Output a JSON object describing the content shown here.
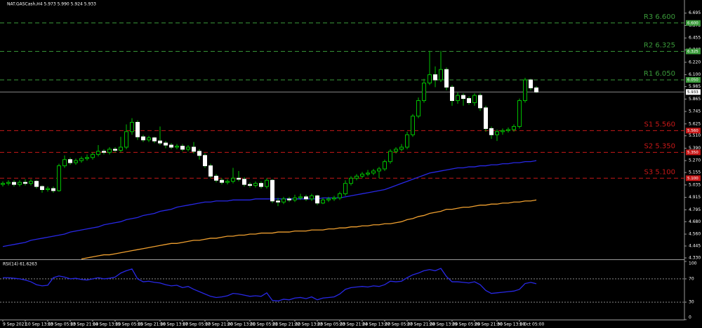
{
  "chart_data": [
    {
      "type": "candlestick",
      "title": "NAT.GASCash,H4 5.973 5.990 5.924 5.933",
      "categories": [
        "9 Sep 2021",
        null,
        null,
        null,
        "10 Sep 13:00",
        null,
        null,
        null,
        "13 Sep 05:00",
        null,
        null,
        null,
        "13 Sep 21:00",
        null,
        null,
        null,
        "14 Sep 13:00",
        null,
        null,
        null,
        "15 Sep 05:00",
        null,
        null,
        null,
        "15 Sep 21:00",
        null,
        null,
        null,
        "16 Sep 13:00",
        null,
        null,
        null,
        "17 Sep 05:00",
        null,
        null,
        null,
        "17 Sep 21:00",
        null,
        null,
        null,
        "20 Sep 13:00",
        null,
        null,
        null,
        "21 Sep 05:00",
        null,
        null,
        null,
        "21 Sep 21:00",
        null,
        null,
        null,
        "22 Sep 13:00",
        null,
        null,
        null,
        "23 Sep 05:00",
        null,
        null,
        null,
        "23 Sep 21:00",
        null,
        null,
        null,
        "24 Sep 13:00",
        null,
        null,
        null,
        "27 Sep 05:00",
        null,
        null,
        null,
        "27 Sep 21:00",
        null,
        null,
        null,
        "28 Sep 13:00",
        null,
        null,
        null,
        "29 Sep 05:00",
        null,
        null,
        null,
        "29 Sep 21:00",
        null,
        null,
        null,
        "30 Sep 13:00",
        null,
        null,
        null,
        "1 Oct 05:00",
        null,
        null,
        null
      ],
      "open": [
        5.04,
        5.05,
        5.06,
        5.04,
        5.06,
        5.05,
        5.07,
        5.02,
        4.99,
        5.0,
        4.98,
        5.22,
        5.28,
        5.25,
        5.27,
        5.29,
        5.3,
        5.33,
        5.36,
        5.35,
        5.38,
        5.37,
        5.4,
        5.55,
        5.64,
        5.5,
        5.47,
        5.49,
        5.46,
        5.44,
        5.42,
        5.4,
        5.41,
        5.38,
        5.4,
        5.36,
        5.32,
        5.22,
        5.12,
        5.08,
        5.06,
        5.07,
        5.1,
        5.09,
        5.04,
        5.03,
        5.05,
        5.02,
        5.08,
        4.88,
        4.87,
        4.9,
        4.89,
        4.91,
        4.92,
        4.9,
        4.93,
        4.86,
        4.89,
        4.9,
        4.91,
        4.95,
        5.05,
        5.1,
        5.12,
        5.14,
        5.15,
        5.17,
        5.19,
        5.26,
        5.36,
        5.38,
        5.4,
        5.52,
        5.7,
        5.85,
        6.02,
        6.1,
        6.05,
        6.15,
        5.98,
        5.85,
        5.9,
        5.87,
        5.83,
        5.9,
        5.78,
        5.58,
        5.52,
        5.55,
        5.56,
        5.57,
        5.6,
        5.85,
        6.05,
        5.973
      ],
      "high": [
        5.07,
        5.08,
        5.08,
        5.08,
        5.09,
        5.09,
        5.08,
        5.03,
        5.02,
        5.02,
        5.24,
        5.32,
        5.3,
        5.29,
        5.31,
        5.33,
        5.35,
        5.42,
        5.38,
        5.4,
        5.4,
        5.5,
        5.62,
        5.68,
        5.66,
        5.52,
        5.51,
        5.5,
        5.6,
        5.46,
        5.44,
        5.43,
        5.43,
        5.42,
        5.45,
        5.38,
        5.34,
        5.24,
        5.14,
        5.1,
        5.09,
        5.2,
        5.17,
        5.11,
        5.06,
        5.07,
        5.07,
        5.1,
        5.09,
        4.91,
        4.92,
        4.92,
        4.94,
        4.95,
        4.94,
        4.95,
        4.94,
        4.91,
        4.92,
        4.93,
        4.97,
        5.08,
        5.12,
        5.14,
        5.16,
        5.18,
        5.19,
        5.21,
        5.28,
        5.38,
        5.4,
        5.43,
        5.55,
        5.72,
        5.88,
        6.06,
        6.33,
        6.18,
        6.33,
        6.17,
        6.0,
        5.93,
        5.92,
        5.89,
        5.92,
        5.92,
        5.8,
        5.6,
        5.57,
        5.58,
        5.59,
        5.62,
        5.87,
        6.07,
        6.06,
        5.99
      ],
      "low": [
        5.02,
        5.03,
        5.02,
        5.02,
        5.03,
        5.03,
        5.0,
        4.96,
        4.97,
        4.96,
        4.97,
        5.2,
        5.23,
        5.23,
        5.25,
        5.27,
        5.28,
        5.31,
        5.33,
        5.33,
        5.35,
        5.35,
        5.38,
        5.52,
        5.47,
        5.45,
        5.45,
        5.44,
        5.42,
        5.39,
        5.38,
        5.38,
        5.36,
        5.36,
        5.34,
        5.28,
        5.2,
        5.1,
        5.06,
        5.04,
        5.04,
        5.05,
        5.07,
        5.02,
        5.01,
        5.01,
        5.0,
        5.0,
        4.86,
        4.83,
        4.85,
        4.87,
        4.87,
        4.89,
        4.88,
        4.88,
        4.84,
        4.85,
        4.87,
        4.88,
        4.89,
        4.93,
        5.03,
        5.08,
        5.1,
        5.12,
        5.13,
        5.1,
        5.17,
        5.24,
        5.34,
        5.36,
        5.38,
        5.5,
        5.68,
        5.83,
        6.0,
        5.98,
        6.03,
        5.95,
        5.8,
        5.82,
        5.8,
        5.81,
        5.8,
        5.75,
        5.55,
        5.48,
        5.46,
        5.52,
        5.54,
        5.55,
        5.58,
        5.83,
        5.95,
        5.924
      ],
      "close": [
        5.05,
        5.06,
        5.04,
        5.06,
        5.05,
        5.07,
        5.02,
        4.99,
        5.0,
        4.98,
        5.22,
        5.28,
        5.25,
        5.27,
        5.29,
        5.3,
        5.33,
        5.36,
        5.35,
        5.38,
        5.37,
        5.4,
        5.55,
        5.64,
        5.5,
        5.47,
        5.49,
        5.46,
        5.44,
        5.42,
        5.4,
        5.41,
        5.38,
        5.4,
        5.36,
        5.32,
        5.22,
        5.12,
        5.08,
        5.06,
        5.07,
        5.1,
        5.09,
        5.04,
        5.03,
        5.05,
        5.02,
        5.08,
        4.88,
        4.87,
        4.9,
        4.89,
        4.91,
        4.92,
        4.9,
        4.93,
        4.86,
        4.89,
        4.9,
        4.91,
        4.95,
        5.05,
        5.1,
        5.12,
        5.14,
        5.15,
        5.17,
        5.19,
        5.26,
        5.36,
        5.38,
        5.4,
        5.52,
        5.7,
        5.85,
        6.02,
        6.1,
        6.05,
        6.15,
        5.98,
        5.85,
        5.9,
        5.87,
        5.83,
        5.9,
        5.78,
        5.58,
        5.52,
        5.55,
        5.56,
        5.57,
        5.6,
        5.85,
        6.05,
        5.973,
        5.933
      ],
      "up_color": "#00c000",
      "down_color": "#ffffff",
      "lines": [
        {
          "color": "#2828e6",
          "values": [
            4.44,
            4.45,
            4.46,
            4.47,
            4.48,
            4.5,
            4.51,
            4.52,
            4.53,
            4.54,
            4.55,
            4.56,
            4.58,
            4.59,
            4.6,
            4.61,
            4.62,
            4.63,
            4.65,
            4.66,
            4.67,
            4.68,
            4.7,
            4.71,
            4.72,
            4.74,
            4.75,
            4.76,
            4.78,
            4.79,
            4.8,
            4.82,
            4.83,
            4.84,
            4.85,
            4.86,
            4.87,
            4.87,
            4.88,
            4.88,
            4.88,
            4.89,
            4.89,
            4.89,
            4.89,
            4.9,
            4.9,
            4.9,
            4.9,
            4.9,
            4.9,
            4.9,
            4.9,
            4.9,
            4.9,
            4.9,
            4.9,
            4.91,
            4.91,
            4.91,
            4.91,
            4.92,
            4.93,
            4.94,
            4.95,
            4.96,
            4.97,
            4.98,
            4.99,
            5.01,
            5.03,
            5.05,
            5.07,
            5.09,
            5.11,
            5.13,
            5.15,
            5.16,
            5.17,
            5.18,
            5.19,
            5.2,
            5.2,
            5.21,
            5.21,
            5.22,
            5.22,
            5.23,
            5.23,
            5.24,
            5.24,
            5.25,
            5.25,
            5.26,
            5.26,
            5.27
          ]
        },
        {
          "color": "#f0a030",
          "values": [
            null,
            null,
            null,
            null,
            null,
            null,
            null,
            null,
            null,
            null,
            null,
            null,
            null,
            null,
            4.32,
            4.33,
            4.34,
            4.35,
            4.36,
            4.36,
            4.37,
            4.38,
            4.39,
            4.4,
            4.41,
            4.42,
            4.43,
            4.44,
            4.45,
            4.46,
            4.47,
            4.47,
            4.48,
            4.49,
            4.5,
            4.5,
            4.51,
            4.52,
            4.52,
            4.53,
            4.54,
            4.54,
            4.55,
            4.55,
            4.56,
            4.56,
            4.57,
            4.57,
            4.57,
            4.58,
            4.58,
            4.58,
            4.59,
            4.59,
            4.59,
            4.6,
            4.6,
            4.6,
            4.61,
            4.61,
            4.62,
            4.62,
            4.63,
            4.63,
            4.64,
            4.64,
            4.65,
            4.65,
            4.66,
            4.66,
            4.67,
            4.68,
            4.7,
            4.71,
            4.73,
            4.74,
            4.76,
            4.77,
            4.78,
            4.8,
            4.8,
            4.81,
            4.82,
            4.82,
            4.83,
            4.84,
            4.84,
            4.85,
            4.85,
            4.86,
            4.86,
            4.87,
            4.87,
            4.88,
            4.88,
            4.89
          ]
        }
      ],
      "levels": [
        {
          "name": "R3 6.600",
          "value": 6.6,
          "label": "6.600",
          "color": "#3a9a3a"
        },
        {
          "name": "R2 6.325",
          "value": 6.325,
          "label": "6.325",
          "color": "#3a9a3a"
        },
        {
          "name": "R1 6.050",
          "value": 6.05,
          "label": "6.050",
          "color": "#3a9a3a"
        },
        {
          "name": "S1 5.560",
          "value": 5.56,
          "label": "5.560",
          "color": "#c81818"
        },
        {
          "name": "S2 5.350",
          "value": 5.35,
          "label": "5.350",
          "color": "#c81818"
        },
        {
          "name": "S3 5.100",
          "value": 5.1,
          "label": "5.100",
          "color": "#c81818"
        }
      ],
      "current_price": 5.933,
      "ylim": [
        4.33,
        6.7
      ],
      "yticks": [
        {
          "value": 4.33,
          "label": "4.330"
        },
        4.445,
        {
          "value": 4.56,
          "label": "4.560"
        },
        {
          "value": 4.68,
          "label": "4.680"
        },
        4.795,
        4.915,
        5.035,
        5.155,
        {
          "value": 5.27,
          "label": "5.270"
        },
        {
          "value": 5.39,
          "label": "5.390"
        },
        {
          "value": 5.51,
          "label": "5.510"
        },
        5.625,
        5.745,
        5.865,
        5.985,
        {
          "value": 6.1,
          "label": "6.100"
        },
        {
          "value": 6.22,
          "label": "6.220"
        },
        {
          "value": 6.34,
          "label": "6.340"
        },
        6.455,
        6.575,
        6.695
      ]
    },
    {
      "type": "line",
      "title": "RSI(14) 61.6263",
      "color": "#2828e6",
      "values": [
        72,
        72,
        71,
        70,
        68,
        65,
        60,
        58,
        59,
        72,
        75,
        73,
        70,
        71,
        69,
        68,
        70,
        72,
        70,
        71,
        73,
        80,
        84,
        87,
        70,
        65,
        66,
        64,
        63,
        60,
        58,
        59,
        55,
        57,
        52,
        48,
        44,
        40,
        38,
        39,
        41,
        45,
        44,
        42,
        40,
        41,
        40,
        46,
        33,
        32,
        35,
        34,
        37,
        38,
        36,
        39,
        34,
        37,
        38,
        39,
        44,
        52,
        55,
        56,
        57,
        56,
        58,
        57,
        60,
        66,
        65,
        66,
        72,
        77,
        80,
        84,
        86,
        84,
        88,
        74,
        65,
        65,
        64,
        63,
        65,
        60,
        50,
        45,
        46,
        47,
        48,
        49,
        52,
        62,
        64,
        61.6263
      ],
      "ylim": [
        0,
        100
      ],
      "yticks": [
        0,
        30,
        70,
        100
      ],
      "levels": [
        30,
        70
      ]
    }
  ]
}
